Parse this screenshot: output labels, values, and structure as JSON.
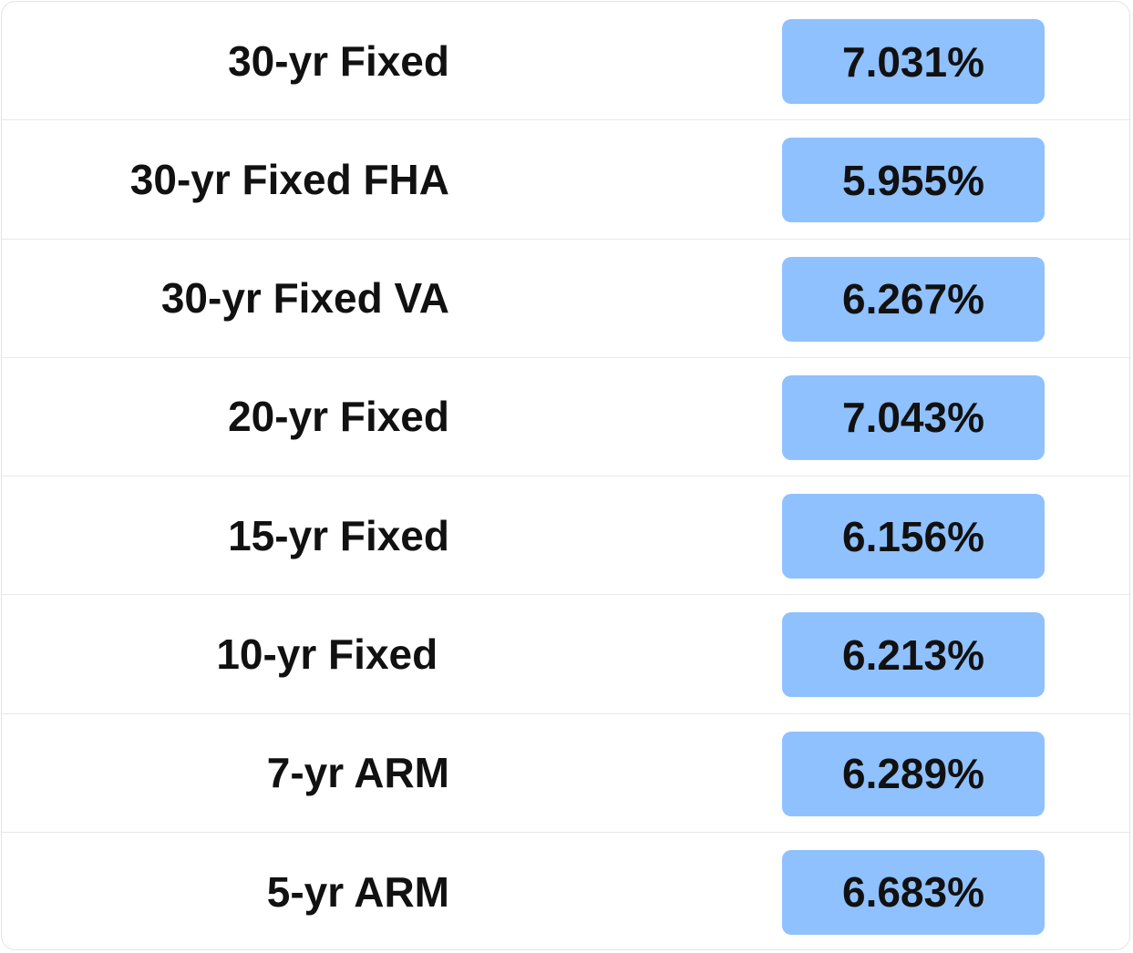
{
  "table": {
    "rows": [
      [
        "30-yr Fixed",
        "7.031%"
      ],
      [
        "30-yr Fixed FHA",
        "5.955%"
      ],
      [
        "30-yr Fixed VA",
        "6.267%"
      ],
      [
        "20-yr Fixed",
        "7.043%"
      ],
      [
        "15-yr Fixed",
        "6.156%"
      ],
      [
        "10-yr Fixed ",
        "6.213%"
      ],
      [
        "7-yr ARM",
        "6.289%"
      ],
      [
        "5-yr ARM",
        "6.683%"
      ]
    ]
  }
}
